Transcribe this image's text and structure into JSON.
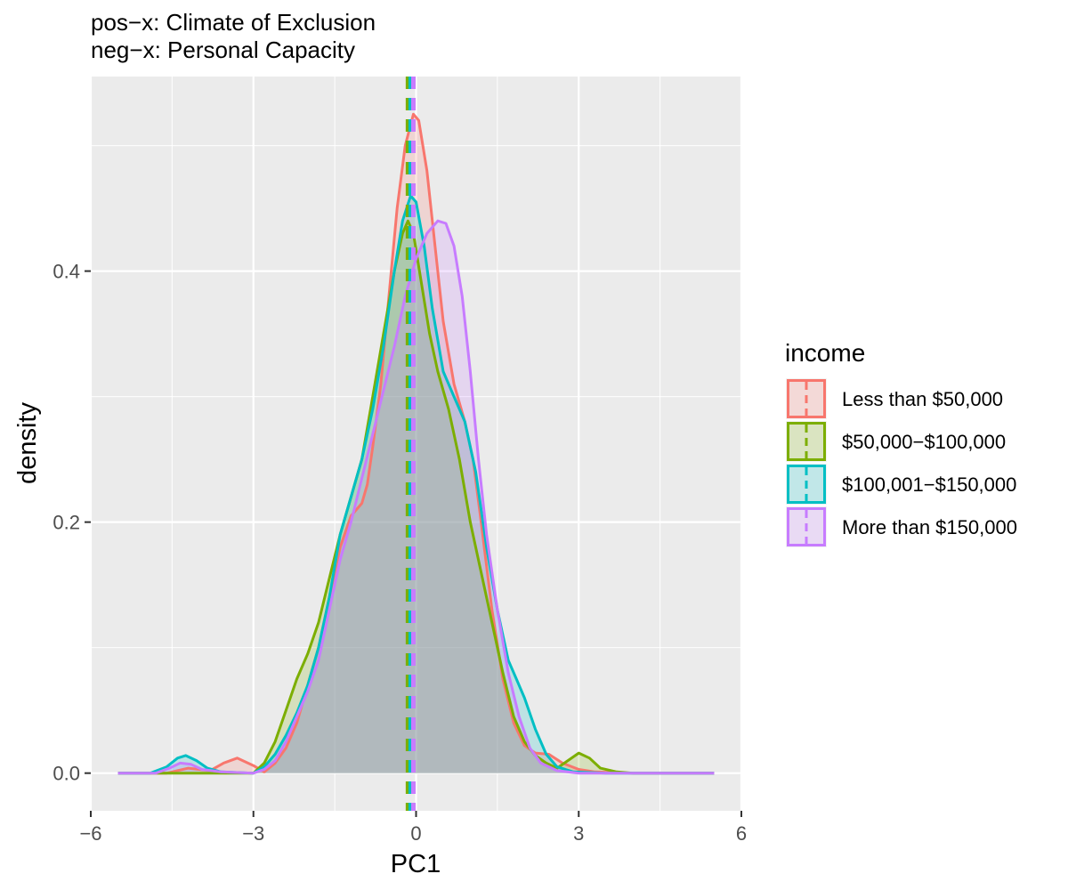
{
  "chart_data": {
    "type": "area",
    "title": "pos−x: Climate of Exclusion",
    "subtitle": "neg−x: Personal Capacity",
    "xlabel": "PC1",
    "ylabel": "density",
    "xlim": [
      -6,
      6
    ],
    "ylim": [
      -0.03,
      0.555
    ],
    "x_ticks": [
      -6,
      -3,
      0,
      3,
      6
    ],
    "x_tick_labels": [
      "−6",
      "−3",
      "0",
      "3",
      "6"
    ],
    "y_ticks": [
      0.0,
      0.2,
      0.4
    ],
    "y_tick_labels": [
      "0.0",
      "0.2",
      "0.4"
    ],
    "grid": true,
    "legend": {
      "title": "income",
      "position": "right"
    },
    "series": [
      {
        "name": "Less than $50,000",
        "color": "#F8766D",
        "fill": "rgba(248,118,109,0.2)",
        "mean": -0.05,
        "points": [
          [
            -5.5,
            0
          ],
          [
            -4.6,
            0
          ],
          [
            -4.2,
            0.004
          ],
          [
            -3.8,
            0.002
          ],
          [
            -3.55,
            0.008
          ],
          [
            -3.3,
            0.012
          ],
          [
            -3.0,
            0.006
          ],
          [
            -2.8,
            0.001
          ],
          [
            -2.6,
            0.008
          ],
          [
            -2.4,
            0.02
          ],
          [
            -2.2,
            0.04
          ],
          [
            -2.0,
            0.07
          ],
          [
            -1.8,
            0.1
          ],
          [
            -1.6,
            0.14
          ],
          [
            -1.4,
            0.18
          ],
          [
            -1.2,
            0.205
          ],
          [
            -1.0,
            0.215
          ],
          [
            -0.9,
            0.23
          ],
          [
            -0.8,
            0.26
          ],
          [
            -0.65,
            0.31
          ],
          [
            -0.5,
            0.38
          ],
          [
            -0.35,
            0.45
          ],
          [
            -0.2,
            0.5
          ],
          [
            -0.05,
            0.525
          ],
          [
            0.05,
            0.52
          ],
          [
            0.2,
            0.48
          ],
          [
            0.35,
            0.42
          ],
          [
            0.5,
            0.36
          ],
          [
            0.7,
            0.31
          ],
          [
            0.9,
            0.28
          ],
          [
            1.05,
            0.25
          ],
          [
            1.2,
            0.2
          ],
          [
            1.4,
            0.13
          ],
          [
            1.6,
            0.075
          ],
          [
            1.8,
            0.04
          ],
          [
            2.0,
            0.022
          ],
          [
            2.2,
            0.016
          ],
          [
            2.45,
            0.015
          ],
          [
            2.7,
            0.008
          ],
          [
            3.0,
            0.003
          ],
          [
            3.3,
            0.001
          ],
          [
            4.0,
            0
          ],
          [
            5.5,
            0
          ]
        ]
      },
      {
        "name": "$50,000−$100,000",
        "color": "#7CAE00",
        "fill": "rgba(124,174,0,0.2)",
        "mean": -0.15,
        "points": [
          [
            -5.5,
            0
          ],
          [
            -3.0,
            0
          ],
          [
            -2.8,
            0.008
          ],
          [
            -2.6,
            0.025
          ],
          [
            -2.4,
            0.05
          ],
          [
            -2.2,
            0.075
          ],
          [
            -2.0,
            0.095
          ],
          [
            -1.8,
            0.12
          ],
          [
            -1.6,
            0.155
          ],
          [
            -1.4,
            0.19
          ],
          [
            -1.2,
            0.22
          ],
          [
            -1.0,
            0.25
          ],
          [
            -0.8,
            0.3
          ],
          [
            -0.6,
            0.35
          ],
          [
            -0.4,
            0.4
          ],
          [
            -0.25,
            0.43
          ],
          [
            -0.15,
            0.44
          ],
          [
            -0.05,
            0.43
          ],
          [
            0.1,
            0.39
          ],
          [
            0.25,
            0.35
          ],
          [
            0.4,
            0.32
          ],
          [
            0.6,
            0.29
          ],
          [
            0.8,
            0.25
          ],
          [
            1.0,
            0.2
          ],
          [
            1.2,
            0.16
          ],
          [
            1.4,
            0.12
          ],
          [
            1.6,
            0.08
          ],
          [
            1.8,
            0.045
          ],
          [
            2.0,
            0.025
          ],
          [
            2.2,
            0.014
          ],
          [
            2.4,
            0.008
          ],
          [
            2.6,
            0.004
          ],
          [
            2.8,
            0.01
          ],
          [
            3.0,
            0.016
          ],
          [
            3.2,
            0.012
          ],
          [
            3.4,
            0.004
          ],
          [
            3.7,
            0.001
          ],
          [
            4.0,
            0
          ],
          [
            5.5,
            0
          ]
        ]
      },
      {
        "name": "$100,001−$150,000",
        "color": "#00BFC4",
        "fill": "rgba(0,191,196,0.2)",
        "mean": -0.1,
        "points": [
          [
            -5.5,
            0
          ],
          [
            -4.9,
            0
          ],
          [
            -4.6,
            0.005
          ],
          [
            -4.4,
            0.012
          ],
          [
            -4.25,
            0.014
          ],
          [
            -4.05,
            0.01
          ],
          [
            -3.85,
            0.004
          ],
          [
            -3.6,
            0.001
          ],
          [
            -3.0,
            0
          ],
          [
            -2.8,
            0.005
          ],
          [
            -2.6,
            0.015
          ],
          [
            -2.4,
            0.03
          ],
          [
            -2.2,
            0.048
          ],
          [
            -2.0,
            0.07
          ],
          [
            -1.8,
            0.1
          ],
          [
            -1.6,
            0.14
          ],
          [
            -1.4,
            0.19
          ],
          [
            -1.2,
            0.22
          ],
          [
            -1.0,
            0.25
          ],
          [
            -0.8,
            0.29
          ],
          [
            -0.6,
            0.34
          ],
          [
            -0.4,
            0.4
          ],
          [
            -0.25,
            0.44
          ],
          [
            -0.1,
            0.46
          ],
          [
            0.0,
            0.455
          ],
          [
            0.15,
            0.42
          ],
          [
            0.3,
            0.37
          ],
          [
            0.5,
            0.32
          ],
          [
            0.7,
            0.3
          ],
          [
            0.9,
            0.28
          ],
          [
            1.1,
            0.24
          ],
          [
            1.3,
            0.18
          ],
          [
            1.5,
            0.13
          ],
          [
            1.7,
            0.09
          ],
          [
            1.85,
            0.075
          ],
          [
            2.0,
            0.06
          ],
          [
            2.2,
            0.035
          ],
          [
            2.4,
            0.015
          ],
          [
            2.6,
            0.005
          ],
          [
            2.9,
            0.001
          ],
          [
            3.5,
            0
          ],
          [
            5.5,
            0
          ]
        ]
      },
      {
        "name": "More than $150,000",
        "color": "#C77CFF",
        "fill": "rgba(199,124,255,0.2)",
        "mean": -0.05,
        "points": [
          [
            -5.5,
            0
          ],
          [
            -4.8,
            0
          ],
          [
            -4.55,
            0.004
          ],
          [
            -4.35,
            0.008
          ],
          [
            -4.15,
            0.007
          ],
          [
            -3.95,
            0.003
          ],
          [
            -3.6,
            0.001
          ],
          [
            -3.0,
            0
          ],
          [
            -2.8,
            0.003
          ],
          [
            -2.6,
            0.01
          ],
          [
            -2.4,
            0.025
          ],
          [
            -2.2,
            0.045
          ],
          [
            -2.0,
            0.065
          ],
          [
            -1.8,
            0.09
          ],
          [
            -1.6,
            0.13
          ],
          [
            -1.4,
            0.17
          ],
          [
            -1.2,
            0.2
          ],
          [
            -1.0,
            0.235
          ],
          [
            -0.8,
            0.27
          ],
          [
            -0.6,
            0.305
          ],
          [
            -0.4,
            0.34
          ],
          [
            -0.2,
            0.38
          ],
          [
            0.0,
            0.41
          ],
          [
            0.2,
            0.43
          ],
          [
            0.4,
            0.44
          ],
          [
            0.55,
            0.438
          ],
          [
            0.7,
            0.42
          ],
          [
            0.85,
            0.38
          ],
          [
            1.0,
            0.32
          ],
          [
            1.15,
            0.25
          ],
          [
            1.3,
            0.19
          ],
          [
            1.5,
            0.13
          ],
          [
            1.7,
            0.08
          ],
          [
            1.9,
            0.045
          ],
          [
            2.1,
            0.02
          ],
          [
            2.3,
            0.008
          ],
          [
            2.6,
            0.002
          ],
          [
            3.0,
            0
          ],
          [
            5.5,
            0
          ]
        ]
      }
    ]
  }
}
